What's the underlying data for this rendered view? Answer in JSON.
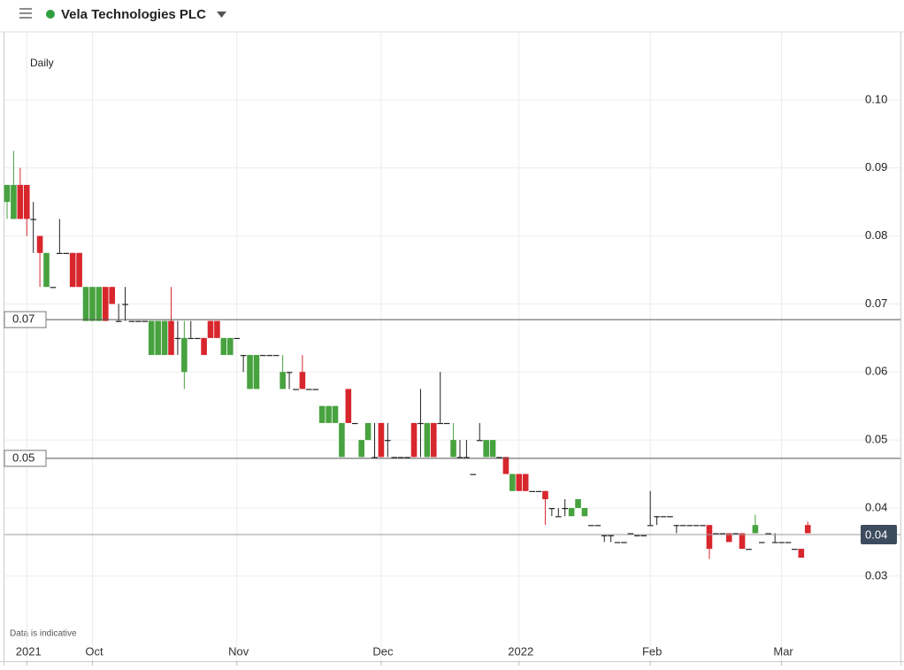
{
  "header": {
    "title": "Vela Technologies PLC"
  },
  "chart_data": {
    "type": "candlestick",
    "interval_label": "Daily",
    "note": "Data is indicative",
    "categories": [
      null,
      null,
      null,
      "2021",
      null,
      null,
      null,
      null,
      null,
      null,
      null,
      null,
      null,
      "Oct",
      null,
      null,
      null,
      null,
      null,
      null,
      null,
      null,
      null,
      null,
      null,
      null,
      null,
      null,
      null,
      null,
      null,
      null,
      null,
      null,
      null,
      "Nov",
      null,
      null,
      null,
      null,
      null,
      null,
      null,
      null,
      null,
      null,
      null,
      null,
      null,
      null,
      null,
      null,
      null,
      null,
      null,
      null,
      null,
      "Dec",
      null,
      null,
      null,
      null,
      null,
      null,
      null,
      null,
      null,
      null,
      null,
      null,
      null,
      null,
      null,
      null,
      null,
      null,
      null,
      null,
      "2022",
      null,
      null,
      null,
      null,
      null,
      null,
      null,
      null,
      null,
      null,
      null,
      null,
      null,
      null,
      null,
      null,
      null,
      null,
      null,
      "Feb",
      null,
      null,
      null,
      null,
      null,
      null,
      null,
      null,
      null,
      null,
      null,
      null,
      null,
      null,
      null,
      null,
      null,
      null,
      null,
      "Mar",
      null,
      null,
      null,
      null
    ],
    "open": [
      0.085,
      0.0825,
      0.0875,
      0.0875,
      0.0825,
      0.08,
      0.0725,
      0.0725,
      0.0775,
      0.0775,
      0.0775,
      0.0775,
      0.0675,
      0.0675,
      0.0675,
      0.0725,
      0.0725,
      0.0675,
      0.07,
      0.0675,
      0.0675,
      0.0675,
      0.0625,
      0.0625,
      0.0625,
      0.0675,
      0.065,
      0.06,
      0.065,
      0.065,
      0.065,
      0.0675,
      0.0675,
      0.0625,
      0.0625,
      0.065,
      0.0625,
      0.0575,
      0.0575,
      0.0625,
      0.0625,
      0.0625,
      0.0575,
      0.06,
      0.0575,
      0.06,
      0.0575,
      0.0575,
      0.0525,
      0.0525,
      0.0525,
      0.0475,
      0.0575,
      0.0525,
      0.0475,
      0.05,
      0.0475,
      0.0525,
      0.05,
      0.0475,
      0.0475,
      0.0475,
      0.0525,
      0.0525,
      0.0475,
      0.0525,
      0.0525,
      0.0525,
      0.0475,
      0.0475,
      0.0475,
      0.045,
      0.05,
      0.0475,
      0.0475,
      0.0475,
      0.0475,
      0.0425,
      0.045,
      0.045,
      0.0425,
      0.0425,
      0.0425,
      0.04,
      0.0388,
      0.04,
      0.0388,
      0.04,
      0.0388,
      0.0375,
      0.0375,
      0.036,
      0.036,
      0.035,
      0.035,
      0.0363,
      0.036,
      0.036,
      0.0375,
      0.0388,
      0.0388,
      0.0388,
      0.0375,
      0.0375,
      0.0375,
      0.0375,
      0.0375,
      0.0375,
      0.0363,
      0.0363,
      0.0363,
      0.0363,
      0.0363,
      0.034,
      0.0363,
      0.035,
      0.0363,
      0.035,
      0.035,
      0.035,
      0.034,
      0.034,
      0.0375
    ],
    "high": [
      0.0875,
      0.0925,
      0.09,
      0.0875,
      0.085,
      0.08,
      0.0775,
      0.0725,
      0.0825,
      0.0775,
      0.0775,
      0.0775,
      0.0725,
      0.0725,
      0.0725,
      0.0725,
      0.0725,
      0.07,
      0.0725,
      0.0675,
      0.0675,
      0.0675,
      0.0675,
      0.0675,
      0.0675,
      0.0725,
      0.0675,
      0.0675,
      0.0675,
      0.065,
      0.065,
      0.0675,
      0.0675,
      0.065,
      0.065,
      0.065,
      0.0625,
      0.0625,
      0.0625,
      0.0625,
      0.0625,
      0.0625,
      0.0625,
      0.06,
      0.0575,
      0.0625,
      0.0575,
      0.0575,
      0.055,
      0.055,
      0.055,
      0.0525,
      0.0575,
      0.0525,
      0.05,
      0.0525,
      0.0525,
      0.0525,
      0.0525,
      0.0475,
      0.0475,
      0.0475,
      0.0525,
      0.0575,
      0.0525,
      0.0525,
      0.06,
      0.0525,
      0.0525,
      0.05,
      0.05,
      0.045,
      0.0525,
      0.05,
      0.05,
      0.0475,
      0.0475,
      0.045,
      0.045,
      0.045,
      0.0425,
      0.0425,
      0.0425,
      0.04,
      0.04,
      0.0413,
      0.04,
      0.0413,
      0.04,
      0.0375,
      0.0375,
      0.036,
      0.036,
      0.035,
      0.035,
      0.0363,
      0.036,
      0.036,
      0.0425,
      0.0388,
      0.0388,
      0.0388,
      0.0375,
      0.0375,
      0.0375,
      0.0375,
      0.0375,
      0.0375,
      0.0363,
      0.0363,
      0.0363,
      0.0363,
      0.0363,
      0.034,
      0.039,
      0.035,
      0.0363,
      0.0363,
      0.035,
      0.035,
      0.034,
      0.034,
      0.038
    ],
    "low": [
      0.0825,
      0.0825,
      0.0825,
      0.08,
      0.0775,
      0.0725,
      0.0725,
      0.0725,
      0.0775,
      0.0775,
      0.0725,
      0.0725,
      0.0675,
      0.0675,
      0.0675,
      0.0675,
      0.07,
      0.0675,
      0.0675,
      0.0675,
      0.0675,
      0.0675,
      0.0625,
      0.0625,
      0.0625,
      0.0625,
      0.0625,
      0.0575,
      0.065,
      0.065,
      0.0625,
      0.065,
      0.065,
      0.0625,
      0.0625,
      0.065,
      0.06,
      0.0575,
      0.0575,
      0.0625,
      0.0625,
      0.0625,
      0.0575,
      0.0575,
      0.0575,
      0.0575,
      0.0575,
      0.0575,
      0.0525,
      0.0525,
      0.0525,
      0.0475,
      0.0525,
      0.0525,
      0.0475,
      0.05,
      0.0475,
      0.0475,
      0.0475,
      0.0475,
      0.0475,
      0.0475,
      0.0475,
      0.0475,
      0.0475,
      0.0475,
      0.0525,
      0.0525,
      0.0475,
      0.0475,
      0.0475,
      0.045,
      0.05,
      0.0475,
      0.0475,
      0.0475,
      0.045,
      0.0425,
      0.0425,
      0.0425,
      0.0425,
      0.0425,
      0.0375,
      0.0388,
      0.0388,
      0.0388,
      0.0388,
      0.04,
      0.0388,
      0.0375,
      0.0375,
      0.035,
      0.035,
      0.035,
      0.035,
      0.0363,
      0.036,
      0.036,
      0.0375,
      0.0375,
      0.0388,
      0.0388,
      0.0363,
      0.0375,
      0.0375,
      0.0375,
      0.0375,
      0.0325,
      0.0363,
      0.0363,
      0.035,
      0.0363,
      0.034,
      0.034,
      0.0363,
      0.035,
      0.0363,
      0.035,
      0.035,
      0.035,
      0.034,
      0.0327,
      0.0363
    ],
    "close": [
      0.0875,
      0.0875,
      0.0825,
      0.0825,
      0.0825,
      0.0775,
      0.0775,
      0.0725,
      0.0775,
      0.0775,
      0.0725,
      0.0725,
      0.0725,
      0.0725,
      0.0725,
      0.0675,
      0.07,
      0.0675,
      0.07,
      0.0675,
      0.0675,
      0.0675,
      0.0675,
      0.0675,
      0.0675,
      0.0625,
      0.065,
      0.065,
      0.065,
      0.065,
      0.0625,
      0.065,
      0.065,
      0.065,
      0.065,
      0.065,
      0.0625,
      0.0625,
      0.0625,
      0.0625,
      0.0625,
      0.0625,
      0.06,
      0.06,
      0.0575,
      0.0575,
      0.0575,
      0.0575,
      0.055,
      0.055,
      0.055,
      0.0525,
      0.0525,
      0.0525,
      0.05,
      0.0525,
      0.0475,
      0.0475,
      0.05,
      0.0475,
      0.0475,
      0.0475,
      0.0475,
      0.0525,
      0.0525,
      0.0475,
      0.0525,
      0.0525,
      0.05,
      0.0475,
      0.0475,
      0.045,
      0.05,
      0.05,
      0.05,
      0.0475,
      0.045,
      0.045,
      0.0425,
      0.0425,
      0.0425,
      0.0425,
      0.0413,
      0.04,
      0.0388,
      0.04,
      0.04,
      0.0413,
      0.04,
      0.0375,
      0.0375,
      0.036,
      0.036,
      0.035,
      0.035,
      0.0363,
      0.036,
      0.036,
      0.0375,
      0.0388,
      0.0388,
      0.0388,
      0.0375,
      0.0375,
      0.0375,
      0.0375,
      0.0375,
      0.034,
      0.0363,
      0.0363,
      0.035,
      0.0363,
      0.034,
      0.034,
      0.0375,
      0.035,
      0.0363,
      0.035,
      0.035,
      0.035,
      0.034,
      0.0327,
      0.0363
    ],
    "up_color": "#47a23f",
    "down_color": "#d8262d",
    "flat_color": "#222222",
    "ylim": [
      0.0197,
      0.11
    ],
    "yticks": [
      {
        "value": 0.1,
        "label": "0.10"
      },
      0.09,
      0.08,
      0.07,
      0.06,
      0.05,
      0.04,
      0.03
    ],
    "grid": true,
    "price_lines": [
      {
        "value": 0.0677,
        "label": "0.07"
      },
      {
        "value": 0.0473,
        "label": "0.05"
      }
    ],
    "last_price": {
      "value": 0.0361,
      "label": "0.04"
    }
  }
}
